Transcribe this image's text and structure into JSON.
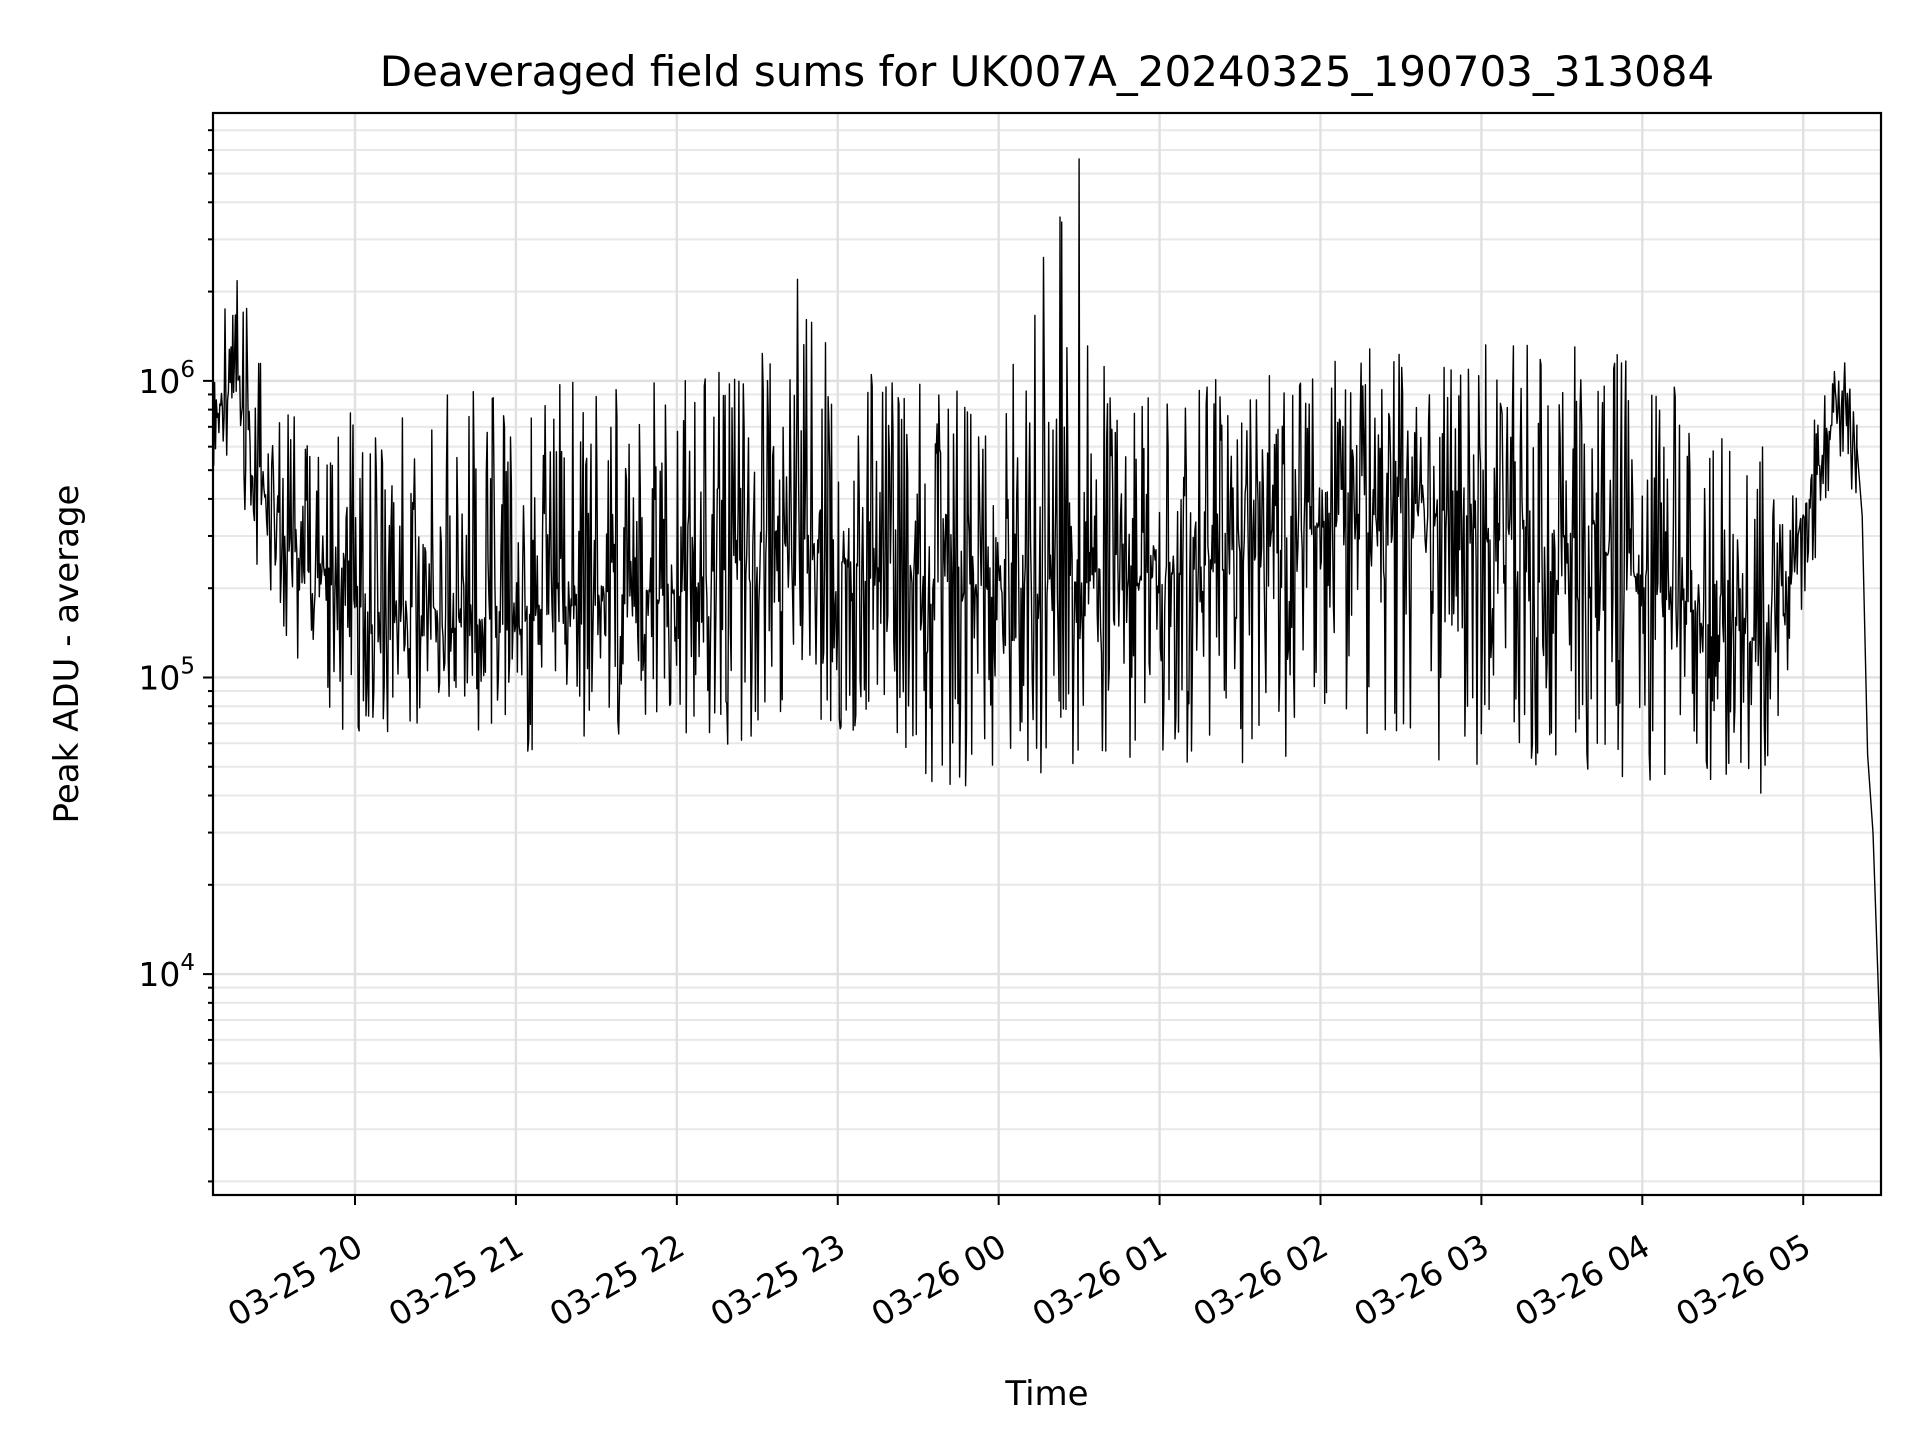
{
  "chart_data": {
    "type": "line",
    "title": "Deaveraged field sums for UK007A_20240325_190703_313084",
    "xlabel": "Time",
    "ylabel": "Peak ADU - average",
    "x_start": "2024-03-25 19:07:03",
    "x_end": "2024-03-26 05:29:00",
    "xlim": [
      "2024-03-25 19:07:03",
      "2024-03-26 05:29:00"
    ],
    "ylim": [
      1800,
      8000000
    ],
    "yscale": "log",
    "grid": true,
    "x_tick_labels": [
      "03-25 20",
      "03-25 21",
      "03-25 22",
      "03-25 23",
      "03-26 00",
      "03-26 01",
      "03-26 02",
      "03-26 03",
      "03-26 04",
      "03-26 05"
    ],
    "x_tick_times": [
      "2024-03-25 20:00",
      "2024-03-25 21:00",
      "2024-03-25 22:00",
      "2024-03-25 23:00",
      "2024-03-26 00:00",
      "2024-03-26 01:00",
      "2024-03-26 02:00",
      "2024-03-26 03:00",
      "2024-03-26 04:00",
      "2024-03-26 05:00"
    ],
    "y_ticks": [
      {
        "value": 10000,
        "base": "10",
        "exp": "4"
      },
      {
        "value": 100000,
        "base": "10",
        "exp": "5"
      },
      {
        "value": 1000000,
        "base": "10",
        "exp": "6"
      }
    ],
    "series": [
      {
        "color": "#000000",
        "envelope": [
          {
            "t": "2024-03-25 19:07",
            "low": 450000,
            "median": 700000,
            "high": 1100000
          },
          {
            "t": "2024-03-25 19:15",
            "low": 600000,
            "median": 1000000,
            "high": 2700000
          },
          {
            "t": "2024-03-25 19:20",
            "low": 300000,
            "median": 600000,
            "high": 1700000
          },
          {
            "t": "2024-03-25 19:30",
            "low": 150000,
            "median": 350000,
            "high": 900000
          },
          {
            "t": "2024-03-25 19:45",
            "low": 80000,
            "median": 220000,
            "high": 700000
          },
          {
            "t": "2024-03-25 20:00",
            "low": 60000,
            "median": 170000,
            "high": 800000
          },
          {
            "t": "2024-03-25 20:30",
            "low": 70000,
            "median": 160000,
            "high": 900000
          },
          {
            "t": "2024-03-25 21:00",
            "low": 55000,
            "median": 150000,
            "high": 1000000
          },
          {
            "t": "2024-03-25 21:30",
            "low": 65000,
            "median": 190000,
            "high": 1000000
          },
          {
            "t": "2024-03-25 22:00",
            "low": 55000,
            "median": 200000,
            "high": 1100000
          },
          {
            "t": "2024-03-25 22:30",
            "low": 60000,
            "median": 260000,
            "high": 1300000
          },
          {
            "t": "2024-03-25 22:45",
            "low": 90000,
            "median": 300000,
            "high": 2200000
          },
          {
            "t": "2024-03-25 23:00",
            "low": 60000,
            "median": 250000,
            "high": 1100000
          },
          {
            "t": "2024-03-25 23:30",
            "low": 40000,
            "median": 220000,
            "high": 1000000
          },
          {
            "t": "2024-03-26 00:00",
            "low": 45000,
            "median": 200000,
            "high": 1000000
          },
          {
            "t": "2024-03-26 00:30",
            "low": 50000,
            "median": 210000,
            "high": 5600000
          },
          {
            "t": "2024-03-26 01:00",
            "low": 50000,
            "median": 220000,
            "high": 1000000
          },
          {
            "t": "2024-03-26 01:30",
            "low": 50000,
            "median": 250000,
            "high": 1100000
          },
          {
            "t": "2024-03-26 02:00",
            "low": 55000,
            "median": 330000,
            "high": 1300000
          },
          {
            "t": "2024-03-26 02:30",
            "low": 55000,
            "median": 380000,
            "high": 1300000
          },
          {
            "t": "2024-03-26 03:00",
            "low": 50000,
            "median": 330000,
            "high": 1400000
          },
          {
            "t": "2024-03-26 03:30",
            "low": 50000,
            "median": 300000,
            "high": 1400000
          },
          {
            "t": "2024-03-26 04:00",
            "low": 45000,
            "median": 220000,
            "high": 1200000
          },
          {
            "t": "2024-03-26 04:45",
            "low": 40000,
            "median": 130000,
            "high": 600000
          },
          {
            "t": "2024-03-26 05:00",
            "low": 150000,
            "median": 350000,
            "high": 600000
          },
          {
            "t": "2024-03-26 05:15",
            "low": 500000,
            "median": 900000,
            "high": 1300000
          },
          {
            "t": "2024-03-26 05:20",
            "low": 350000,
            "median": 600000,
            "high": 900000
          }
        ],
        "tail": [
          {
            "t": "2024-03-26 05:20",
            "y": 600000
          },
          {
            "t": "2024-03-26 05:22",
            "y": 350000
          },
          {
            "t": "2024-03-26 05:24",
            "y": 55000
          },
          {
            "t": "2024-03-26 05:26",
            "y": 30000
          },
          {
            "t": "2024-03-26 05:28",
            "y": 9000
          },
          {
            "t": "2024-03-26 05:29",
            "y": 4800
          }
        ]
      }
    ]
  }
}
